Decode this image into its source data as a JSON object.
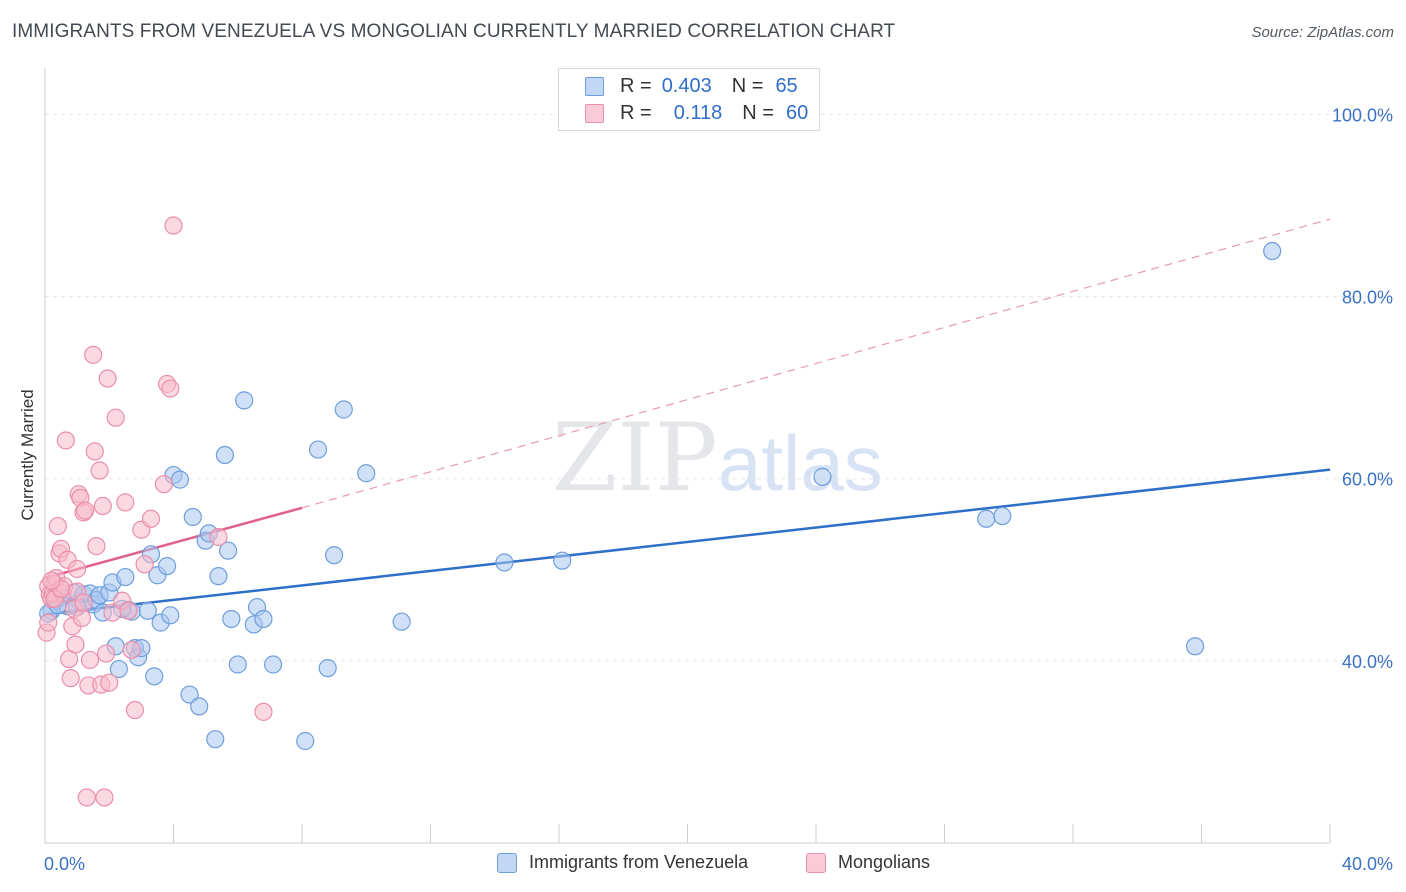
{
  "title": "IMMIGRANTS FROM VENEZUELA VS MONGOLIAN CURRENTLY MARRIED CORRELATION CHART",
  "source": "Source: ZipAtlas.com",
  "watermark": {
    "zip": "ZIP",
    "atlas": "atlas"
  },
  "colors": {
    "blue_fill": "#a9c6ee",
    "blue_stroke": "#6e9fdc",
    "blue_line": "#2f6fc9",
    "pink_fill": "#f7b9cb",
    "pink_stroke": "#ea8fab",
    "pink_line": "#e0628c",
    "axis_text": "#3b72c5",
    "grid": "#e3e5e8"
  },
  "legend_top": [
    {
      "r_label": "R =",
      "r_value": "0.403",
      "n_label": "N =",
      "n_value": "65"
    },
    {
      "r_label": "R =",
      "r_value": "0.118",
      "n_label": "N =",
      "n_value": "60"
    }
  ],
  "chart_data": {
    "type": "scatter",
    "title": "IMMIGRANTS FROM VENEZUELA VS MONGOLIAN CURRENTLY MARRIED CORRELATION CHART",
    "xlabel": "",
    "ylabel": "Currently Married",
    "xlim": [
      0,
      40
    ],
    "ylim": [
      20,
      104
    ],
    "x_tick_labels": [
      "0.0%",
      "40.0%"
    ],
    "y_ticks": [
      40,
      60,
      80,
      100
    ],
    "y_tick_labels": [
      "40.0%",
      "60.0%",
      "80.0%",
      "100.0%"
    ],
    "grid": true,
    "legend_position": "bottom",
    "series": [
      {
        "name": "Immigrants from Venezuela",
        "color": "#a9c6ee",
        "points": [
          [
            0.2,
            45.5
          ],
          [
            0.3,
            46.5
          ],
          [
            0.5,
            47.0
          ],
          [
            0.7,
            46.0
          ],
          [
            0.9,
            47.5
          ],
          [
            1.1,
            46.5
          ],
          [
            1.2,
            47.3
          ],
          [
            1.4,
            47.4
          ],
          [
            1.5,
            46.2
          ],
          [
            1.6,
            46.7
          ],
          [
            1.7,
            47.2
          ],
          [
            1.8,
            45.3
          ],
          [
            2.0,
            47.5
          ],
          [
            2.1,
            48.6
          ],
          [
            2.2,
            41.6
          ],
          [
            2.3,
            39.1
          ],
          [
            2.5,
            49.2
          ],
          [
            2.6,
            45.6
          ],
          [
            2.7,
            45.4
          ],
          [
            2.8,
            41.4
          ],
          [
            2.9,
            40.4
          ],
          [
            3.0,
            41.4
          ],
          [
            3.2,
            45.5
          ],
          [
            3.3,
            51.7
          ],
          [
            3.4,
            38.3
          ],
          [
            3.5,
            49.4
          ],
          [
            3.6,
            44.2
          ],
          [
            3.8,
            50.4
          ],
          [
            3.9,
            45.0
          ],
          [
            4.0,
            60.4
          ],
          [
            4.2,
            59.9
          ],
          [
            4.5,
            36.3
          ],
          [
            4.6,
            55.8
          ],
          [
            4.8,
            35.0
          ],
          [
            5.0,
            53.2
          ],
          [
            5.1,
            54.0
          ],
          [
            5.3,
            31.4
          ],
          [
            5.4,
            49.3
          ],
          [
            5.6,
            62.6
          ],
          [
            5.7,
            52.1
          ],
          [
            5.8,
            44.6
          ],
          [
            6.0,
            39.6
          ],
          [
            6.2,
            68.6
          ],
          [
            6.5,
            44.0
          ],
          [
            6.6,
            45.9
          ],
          [
            6.8,
            44.6
          ],
          [
            7.1,
            39.6
          ],
          [
            8.1,
            31.2
          ],
          [
            8.5,
            63.2
          ],
          [
            8.8,
            39.2
          ],
          [
            9.0,
            51.6
          ],
          [
            9.3,
            67.6
          ],
          [
            10.0,
            60.6
          ],
          [
            11.1,
            44.3
          ],
          [
            14.3,
            50.8
          ],
          [
            16.1,
            51.0
          ],
          [
            24.2,
            60.2
          ],
          [
            29.3,
            55.6
          ],
          [
            29.8,
            55.9
          ],
          [
            35.8,
            41.6
          ],
          [
            38.2,
            85.0
          ],
          [
            0.1,
            45.2
          ],
          [
            0.4,
            46.1
          ],
          [
            1.0,
            45.9
          ],
          [
            2.4,
            45.7
          ]
        ],
        "trend": {
          "x": [
            0,
            40
          ],
          "y": [
            45.1,
            61.0
          ],
          "style": "solid"
        }
      },
      {
        "name": "Mongolians",
        "color": "#f7b9cb",
        "points": [
          [
            0.05,
            43.1
          ],
          [
            0.1,
            44.2
          ],
          [
            0.1,
            48.2
          ],
          [
            0.15,
            47.3
          ],
          [
            0.2,
            46.8
          ],
          [
            0.25,
            47.4
          ],
          [
            0.3,
            48.5
          ],
          [
            0.35,
            49.1
          ],
          [
            0.4,
            54.8
          ],
          [
            0.45,
            51.8
          ],
          [
            0.5,
            52.3
          ],
          [
            0.55,
            47.4
          ],
          [
            0.6,
            48.2
          ],
          [
            0.65,
            64.2
          ],
          [
            0.7,
            51.1
          ],
          [
            0.75,
            40.2
          ],
          [
            0.8,
            38.1
          ],
          [
            0.85,
            43.8
          ],
          [
            0.9,
            45.7
          ],
          [
            0.95,
            41.8
          ],
          [
            1.0,
            50.1
          ],
          [
            1.05,
            58.3
          ],
          [
            1.1,
            57.9
          ],
          [
            1.15,
            44.7
          ],
          [
            1.2,
            56.3
          ],
          [
            1.25,
            56.5
          ],
          [
            1.3,
            25.0
          ],
          [
            1.35,
            37.3
          ],
          [
            1.4,
            40.1
          ],
          [
            1.5,
            73.6
          ],
          [
            1.55,
            63.0
          ],
          [
            1.6,
            52.6
          ],
          [
            1.7,
            60.9
          ],
          [
            1.75,
            37.4
          ],
          [
            1.8,
            57.0
          ],
          [
            1.85,
            25.0
          ],
          [
            1.9,
            40.8
          ],
          [
            1.95,
            71.0
          ],
          [
            2.0,
            37.6
          ],
          [
            2.1,
            45.3
          ],
          [
            2.2,
            66.7
          ],
          [
            2.4,
            46.6
          ],
          [
            2.5,
            57.4
          ],
          [
            2.6,
            45.5
          ],
          [
            2.7,
            41.2
          ],
          [
            2.8,
            34.6
          ],
          [
            3.0,
            54.4
          ],
          [
            3.1,
            50.6
          ],
          [
            3.3,
            55.6
          ],
          [
            3.7,
            59.4
          ],
          [
            3.8,
            70.4
          ],
          [
            3.9,
            69.9
          ],
          [
            4.0,
            87.8
          ],
          [
            5.4,
            53.6
          ],
          [
            6.8,
            34.4
          ],
          [
            0.3,
            46.8
          ],
          [
            0.5,
            47.9
          ],
          [
            1.0,
            47.6
          ],
          [
            0.2,
            48.8
          ],
          [
            1.2,
            46.4
          ]
        ],
        "trend": {
          "x": [
            0,
            8
          ],
          "y": [
            49.1,
            56.8
          ],
          "style": "solid",
          "extension": {
            "x": [
              8,
              40
            ],
            "y": [
              56.8,
              88.5
            ],
            "style": "dashed"
          }
        }
      }
    ]
  }
}
